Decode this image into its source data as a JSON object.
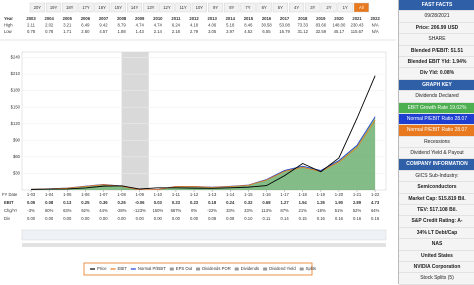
{
  "toolbar": {
    "buttons": [
      "20Y",
      "19Y",
      "18Y",
      "17Y",
      "16Y",
      "15Y",
      "14Y",
      "13Y",
      "12Y",
      "11Y",
      "10Y",
      "9Y",
      "8Y",
      "7Y",
      "6Y",
      "5Y",
      "4Y",
      "3Y",
      "2Y",
      "1Y",
      "All"
    ]
  },
  "year_table": {
    "rows": [
      [
        "Year",
        "2003",
        "2004",
        "2005",
        "2006",
        "2007",
        "2008",
        "2009",
        "2010",
        "2011",
        "2012",
        "2013",
        "2014",
        "2015",
        "2016",
        "2017",
        "2018",
        "2019",
        "2020",
        "2021",
        "2022"
      ],
      [
        "High",
        "2.11",
        "2.02",
        "3.21",
        "6.49",
        "9.42",
        "8.79",
        "4.74",
        "4.74",
        "6.24",
        "4.18",
        "4.06",
        "5.18",
        "8.46",
        "30.58",
        "53.08",
        "73.33",
        "83.66",
        "148.00",
        "230.43",
        "N/A"
      ],
      [
        "Low",
        "0.78",
        "0.78",
        "1.71",
        "2.60",
        "4.57",
        "1.88",
        "1.43",
        "2.14",
        "2.18",
        "2.79",
        "3.05",
        "3.97",
        "4.52",
        "6.55",
        "16.79",
        "31.12",
        "32.59",
        "45.17",
        "115.67",
        "N/A"
      ]
    ]
  },
  "chart_data": {
    "type": "line",
    "x": [
      2003,
      2004,
      2005,
      2006,
      2007,
      2008,
      2009,
      2010,
      2011,
      2012,
      2013,
      2014,
      2015,
      2016,
      2017,
      2018,
      2019,
      2020,
      2021,
      2022
    ],
    "xlim": [
      2002.5,
      2022.6
    ],
    "xticks": [
      {
        "value": 2003,
        "label": "1-03"
      },
      {
        "value": 2004,
        "label": "1-04"
      },
      {
        "value": 2005,
        "label": "1-05"
      },
      {
        "value": 2006,
        "label": "1-06"
      },
      {
        "value": 2007,
        "label": "1-07"
      },
      {
        "value": 2008,
        "label": "1-08"
      },
      {
        "value": 2009,
        "label": "1-09"
      },
      {
        "value": 2010,
        "label": "1-10"
      },
      {
        "value": 2011,
        "label": "1-11"
      },
      {
        "value": 2012,
        "label": "1-12"
      },
      {
        "value": 2013,
        "label": "1-13"
      },
      {
        "value": 2014,
        "label": "1-14"
      },
      {
        "value": 2015,
        "label": "1-15"
      },
      {
        "value": 2016,
        "label": "1-16"
      },
      {
        "value": 2017,
        "label": "1-17"
      },
      {
        "value": 2018,
        "label": "1-18"
      },
      {
        "value": 2019,
        "label": "1-19"
      },
      {
        "value": 2020,
        "label": "1-20"
      },
      {
        "value": 2021,
        "label": "1-21"
      },
      {
        "value": 2022,
        "label": "1-22"
      }
    ],
    "ylim": [
      0,
      250
    ],
    "yticks": [
      {
        "value": 30,
        "label": "$30"
      },
      {
        "value": 60,
        "label": "$60"
      },
      {
        "value": 90,
        "label": "$90"
      },
      {
        "value": 120,
        "label": "$120"
      },
      {
        "value": 150,
        "label": "$150"
      },
      {
        "value": 180,
        "label": "$180"
      },
      {
        "value": 210,
        "label": "$210"
      },
      {
        "value": 240,
        "label": "$240"
      }
    ],
    "x_label": "FY Date",
    "recessions": [
      [
        2008,
        2009.5
      ]
    ],
    "area": {
      "name": "EBIT Growth Rate",
      "color": "#5aa55e",
      "values": [
        1.4,
        2.2,
        3.6,
        7.0,
        10.1,
        7.3,
        0,
        0.8,
        6.5,
        6.5,
        5.1,
        6.7,
        9.0,
        19.1,
        35.6,
        43.2,
        35.4,
        53.4,
        81.1,
        132.8
      ]
    },
    "series": [
      {
        "name": "Normal P/EBIT",
        "color": "#1f3fd1",
        "values": [
          1.4,
          2.2,
          3.6,
          7.0,
          10.1,
          7.3,
          0,
          0.8,
          6.5,
          6.5,
          5.1,
          6.7,
          9.0,
          19.1,
          35.6,
          43.2,
          35.4,
          53.4,
          81.1,
          132.8
        ]
      },
      {
        "name": "EBIT",
        "color": "#e8791e",
        "values": [
          1.3,
          2.0,
          3.4,
          6.6,
          9.6,
          6.9,
          0,
          0.8,
          6.2,
          6.2,
          4.8,
          6.4,
          8.6,
          18.2,
          33.8,
          41.0,
          33.6,
          50.7,
          77.0,
          126.2
        ]
      },
      {
        "name": "Price",
        "color": "#000000",
        "values": [
          1.0,
          1.7,
          1.9,
          3.7,
          7.0,
          7.5,
          1.8,
          4.0,
          4.0,
          3.4,
          3.0,
          4.0,
          5.2,
          8.0,
          26,
          48,
          33,
          58,
          130,
          207
        ]
      }
    ],
    "legend_extra": [
      "EPS Out",
      "Dividends POR",
      "Dividends",
      "Dividend Yield",
      "Splits"
    ]
  },
  "bottom_table": {
    "rows": [
      [
        "EBIT",
        "0.05",
        "0.08",
        "0.13",
        "0.25",
        "0.36",
        "0.26",
        "-0.06",
        "0.03",
        "0.23",
        "0.23",
        "0.18",
        "0.24",
        "0.32",
        "0.68",
        "1.27",
        "1.54",
        "1.26",
        "1.90",
        "2.89",
        "4.73"
      ],
      [
        "Chg/Yr",
        "-3%",
        "60%",
        "63%",
        "92%",
        "44%",
        "-28%",
        "-123%",
        "150%",
        "667%",
        "0%",
        "-22%",
        "33%",
        "33%",
        "113%",
        "87%",
        "21%",
        "-18%",
        "51%",
        "52%",
        "64%"
      ],
      [
        "Div",
        "0.00",
        "0.00",
        "0.00",
        "0.00",
        "0.00",
        "0.00",
        "0.00",
        "0.00",
        "0.00",
        "0.00",
        "0.08",
        "0.08",
        "0.10",
        "0.11",
        "0.14",
        "0.15",
        "0.16",
        "0.16",
        "0.16",
        "0.16"
      ]
    ]
  },
  "sidebar": {
    "items": [
      "FAST FACTS",
      "09/28/2021",
      "Price: 206.99 USD",
      "SHARE",
      "Blended P/EBIT: 51.51",
      "Blended EBIT Yld: 1.94%",
      "Div Yld: 0.08%",
      "GRAPH KEY",
      "Dividends Declared",
      "EBIT Growth Rate 19.02%",
      "Normal P/EBIT Ratio 28.07",
      "Normal P/EBIT Ratio 28.07",
      "Recessions",
      "Dividend Yield & Payout",
      "COMPANY INFORMATION",
      "GICS Sub-Industry:",
      "Semiconductors",
      "Market Cap: 515.819 Bil.",
      "TEV: 517.108 Bil.",
      "S&P Credit Rating: A-",
      "34% LT Debt/Cap",
      "NAS",
      "United States",
      "NVIDIA Corporation",
      "Stock Splits (5)"
    ]
  }
}
